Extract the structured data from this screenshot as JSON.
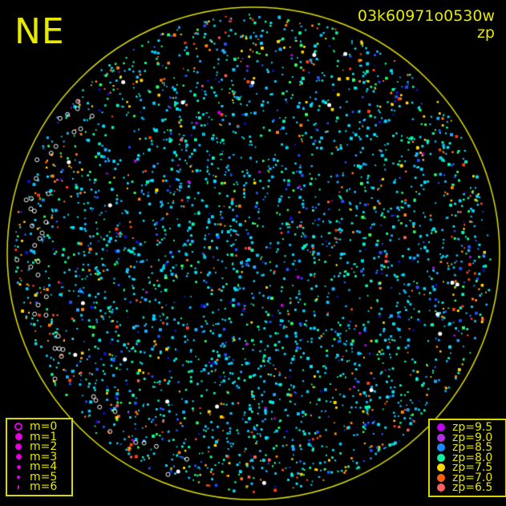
{
  "corner_label": "NE",
  "title": {
    "id": "03k60971o0530w",
    "subtitle": "zp"
  },
  "magnitude_legend": {
    "color": "#e000e0",
    "items": [
      {
        "label": "m=0",
        "hollow": true
      },
      {
        "label": "m=1"
      },
      {
        "label": "m=2"
      },
      {
        "label": "m=3"
      },
      {
        "label": "m=4"
      },
      {
        "label": "m=5"
      },
      {
        "label": "m=6"
      }
    ]
  },
  "zp_legend": {
    "items": [
      {
        "label": "zp=9.5",
        "color": "#c000f0"
      },
      {
        "label": "zp=9.0",
        "color": "#b030e0"
      },
      {
        "label": "zp=8.5",
        "color": "#2088ff"
      },
      {
        "label": "zp=8.0",
        "color": "#10f0a0"
      },
      {
        "label": "zp=7.5",
        "color": "#ffd800"
      },
      {
        "label": "zp=7.0",
        "color": "#ff6010"
      },
      {
        "label": "zp=6.5",
        "color": "#ff6060"
      }
    ]
  },
  "horizon_color": "#e0e000"
}
